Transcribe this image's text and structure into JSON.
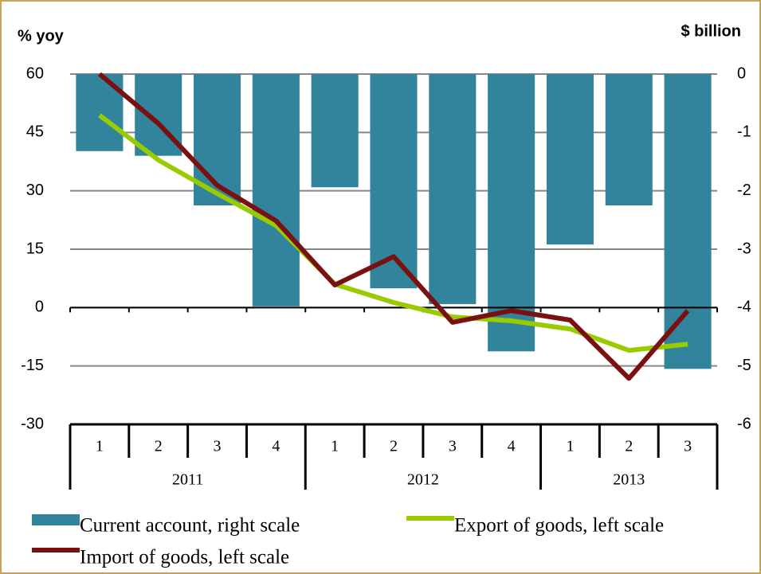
{
  "chart_data": {
    "type": "bar-line",
    "y_label": "% yoy",
    "y2_label": "$ billion",
    "groups": [
      {
        "label": "2011",
        "categories": [
          "1",
          "2",
          "3",
          "4"
        ]
      },
      {
        "label": "2012",
        "categories": [
          "1",
          "2",
          "3",
          "4"
        ]
      },
      {
        "label": "2013",
        "categories": [
          "1",
          "2",
          "3"
        ]
      }
    ],
    "ylim": [
      -30,
      60
    ],
    "yticks": [
      60,
      45,
      30,
      15,
      0,
      -15,
      -30
    ],
    "y2lim": [
      -6,
      0
    ],
    "y2ticks": [
      0,
      -1,
      -2,
      -3,
      -4,
      -5,
      -6
    ],
    "grid": true,
    "series": [
      {
        "name": "Current account, right scale",
        "type": "bar",
        "axis": "y2",
        "color": "#31849b",
        "values": [
          -1.32,
          -1.4,
          -2.25,
          -3.98,
          -1.94,
          -3.67,
          -3.94,
          -4.75,
          -2.92,
          -2.25,
          -5.05
        ]
      },
      {
        "name": "Export of goods, left scale",
        "type": "line",
        "color": "#99cc00",
        "values": [
          49.4,
          37.9,
          29.3,
          21.1,
          6,
          1.3,
          -2.4,
          -3.4,
          -5.5,
          -11,
          -9.4
        ]
      },
      {
        "name": "Import of goods, left scale",
        "type": "line",
        "color": "#7b1010",
        "values": [
          60,
          47.3,
          31.4,
          22.3,
          5.8,
          13.1,
          -3.8,
          -0.8,
          -3.2,
          -18.2,
          -0.8
        ]
      }
    ]
  }
}
